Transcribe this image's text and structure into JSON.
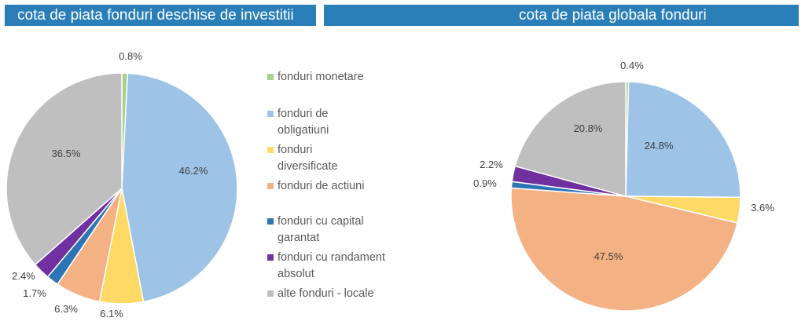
{
  "chart_data": [
    {
      "type": "pie",
      "title": "cota de piata fonduri deschise de investitii",
      "categories": [
        "fonduri monetare",
        "fonduri de obligatiuni",
        "fonduri diversificate",
        "fonduri de actiuni",
        "fonduri cu capital garantat",
        "fonduri cu randament absolut",
        "alte fonduri - locale"
      ],
      "values": [
        0.8,
        46.2,
        6.1,
        6.3,
        1.7,
        2.4,
        36.5
      ],
      "labels": [
        "0.8%",
        "46.2%",
        "6.1%",
        "6.3%",
        "1.7%",
        "2.4%",
        "36.5%"
      ]
    },
    {
      "type": "pie",
      "title": "cota de piata globala fonduri",
      "categories": [
        "fonduri monetare",
        "fonduri de obligatiuni",
        "fonduri diversificate",
        "fonduri de actiuni",
        "fonduri cu capital garantat",
        "fonduri cu randament absolut",
        "alte fonduri - locale"
      ],
      "values": [
        0.4,
        24.8,
        3.6,
        47.5,
        0.9,
        2.2,
        20.8
      ],
      "labels": [
        "0.4%",
        "24.8%",
        "3.6%",
        "47.5%",
        "0.9%",
        "2.2%",
        "20.8%"
      ]
    }
  ],
  "legend": {
    "items": [
      {
        "label": "fonduri monetare",
        "color": "#a9d18e"
      },
      {
        "label": "fonduri de obligatiuni",
        "color": "#9dc3e6"
      },
      {
        "label": "fonduri diversificate",
        "color": "#ffd966"
      },
      {
        "label": "fonduri de actiuni",
        "color": "#f4b183"
      },
      {
        "label": "fonduri cu capital garantat",
        "color": "#2e75b6"
      },
      {
        "label": "fonduri cu randament absolut",
        "color": "#7030a0"
      },
      {
        "label": "alte fonduri - locale",
        "color": "#bfbfbf"
      }
    ]
  }
}
